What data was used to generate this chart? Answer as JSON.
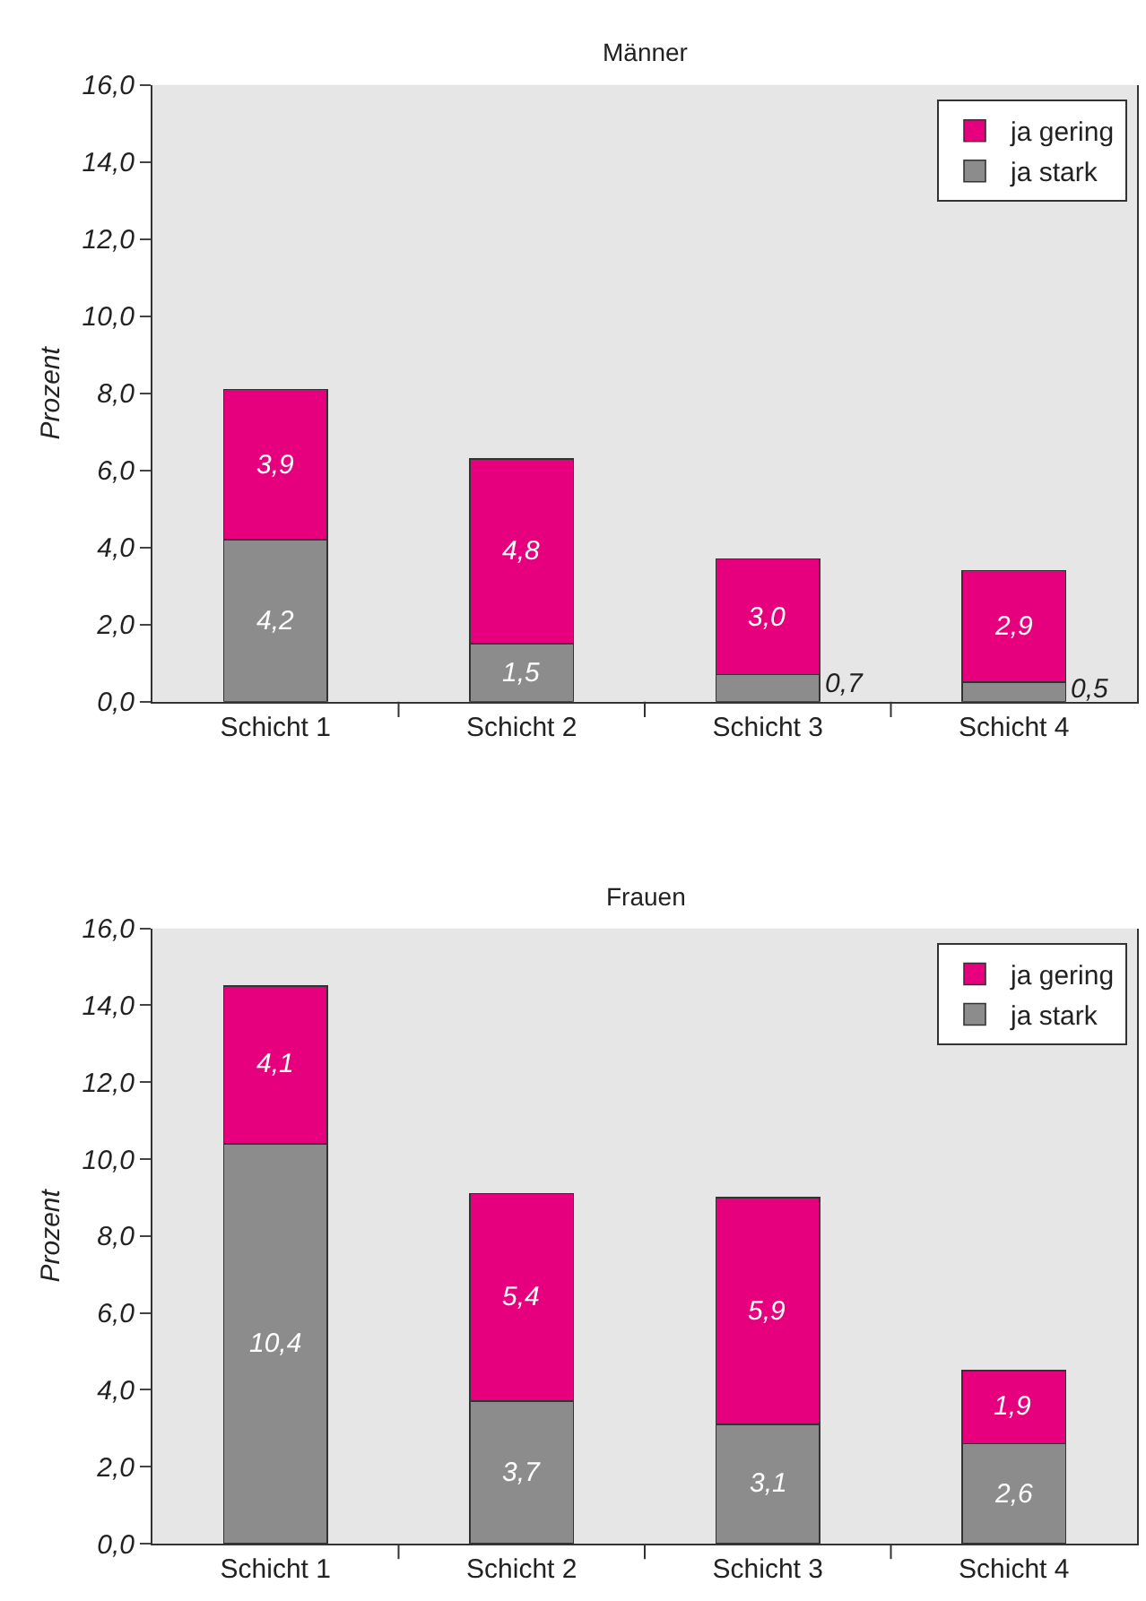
{
  "chart_data": [
    {
      "type": "bar",
      "title": "Männer",
      "ylabel": "Prozent",
      "stacked": true,
      "categories": [
        "Schicht 1",
        "Schicht 2",
        "Schicht 3",
        "Schicht 4"
      ],
      "series": [
        {
          "name": "ja stark",
          "color": "#8c8c8c",
          "values": [
            4.2,
            1.5,
            0.7,
            0.5
          ],
          "value_labels": [
            "4,2",
            "1,5",
            "0,7",
            "0,5"
          ]
        },
        {
          "name": "ja gering",
          "color": "#e6007e",
          "values": [
            3.9,
            4.8,
            3.0,
            2.9
          ],
          "value_labels": [
            "3,9",
            "4,8",
            "3,0",
            "2,9"
          ]
        }
      ],
      "ylim": [
        0,
        16
      ],
      "yticks": [
        {
          "value": 0,
          "label": "0,0"
        },
        {
          "value": 2,
          "label": "2,0"
        },
        {
          "value": 4,
          "label": "4,0"
        },
        {
          "value": 6,
          "label": "6,0"
        },
        {
          "value": 8,
          "label": "8,0"
        },
        {
          "value": 10,
          "label": "10,0"
        },
        {
          "value": 12,
          "label": "12,0"
        },
        {
          "value": 14,
          "label": "14,0"
        },
        {
          "value": 16,
          "label": "16,0"
        }
      ],
      "grid": false,
      "legend": "top right"
    },
    {
      "type": "bar",
      "title": "Frauen",
      "ylabel": "Prozent",
      "stacked": true,
      "categories": [
        "Schicht 1",
        "Schicht 2",
        "Schicht 3",
        "Schicht 4"
      ],
      "series": [
        {
          "name": "ja stark",
          "color": "#8c8c8c",
          "values": [
            10.4,
            3.7,
            3.1,
            2.6
          ],
          "value_labels": [
            "10,4",
            "3,7",
            "3,1",
            "2,6"
          ]
        },
        {
          "name": "ja gering",
          "color": "#e6007e",
          "values": [
            4.1,
            5.4,
            5.9,
            1.9
          ],
          "value_labels": [
            "4,1",
            "5,4",
            "5,9",
            "1,9"
          ]
        }
      ],
      "ylim": [
        0,
        16
      ],
      "yticks": [
        {
          "value": 0,
          "label": "0,0"
        },
        {
          "value": 2,
          "label": "2,0"
        },
        {
          "value": 4,
          "label": "4,0"
        },
        {
          "value": 6,
          "label": "6,0"
        },
        {
          "value": 8,
          "label": "8,0"
        },
        {
          "value": 10,
          "label": "10,0"
        },
        {
          "value": 12,
          "label": "12,0"
        },
        {
          "value": 14,
          "label": "14,0"
        },
        {
          "value": 16,
          "label": "16,0"
        }
      ],
      "grid": false,
      "legend": "top right"
    }
  ]
}
